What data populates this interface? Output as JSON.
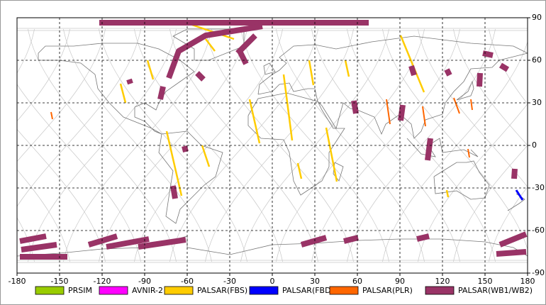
{
  "map": {
    "xlim": [
      -180,
      180
    ],
    "ylim": [
      -90,
      90
    ],
    "xticks": [
      -180,
      -150,
      -120,
      -90,
      -60,
      -30,
      0,
      30,
      60,
      90,
      120,
      150,
      180
    ],
    "yticks": [
      -90,
      -60,
      -30,
      0,
      30,
      60,
      90
    ],
    "grid": true
  },
  "legend": [
    {
      "name": "PRSIM",
      "color": "#99cc00"
    },
    {
      "name": "AVNIR-2",
      "color": "#ff00ff"
    },
    {
      "name": "PALSAR(FBS)",
      "color": "#ffcc00",
      "swaths": [
        [
          [
            -107,
            43.5
          ],
          [
            -103.5,
            30
          ]
        ],
        [
          [
            -88,
            60
          ],
          [
            -84,
            46.5
          ]
        ],
        [
          [
            -74.5,
            10
          ],
          [
            -64,
            -35.5
          ]
        ],
        [
          [
            -49.5,
            0
          ],
          [
            -44.5,
            -15
          ]
        ],
        [
          [
            -16,
            32.5
          ],
          [
            -9,
            1.5
          ]
        ],
        [
          [
            8,
            50
          ],
          [
            14,
            3.5
          ]
        ],
        [
          [
            26,
            60
          ],
          [
            29,
            42.5
          ]
        ],
        [
          [
            51.5,
            60
          ],
          [
            54,
            48.5
          ]
        ],
        [
          [
            38,
            12.5
          ],
          [
            45.5,
            -25.5
          ]
        ],
        [
          [
            90.5,
            77.5
          ],
          [
            107,
            37.5
          ]
        ],
        [
          [
            18,
            -12.5
          ],
          [
            20.5,
            -23.5
          ]
        ],
        [
          [
            -47,
            75
          ],
          [
            -40.5,
            66.5
          ]
        ],
        [
          [
            123,
            -31.5
          ],
          [
            124,
            -36.5
          ]
        ],
        [
          [
            -61,
            86.5
          ],
          [
            -27,
            75
          ]
        ]
      ]
    },
    {
      "name": "PALSAR(FBD)",
      "color": "#0000ff",
      "swaths": [
        [
          [
            172,
            -31.5
          ],
          [
            176.5,
            -38.5
          ]
        ]
      ]
    },
    {
      "name": "PALSAR(PLR)",
      "color": "#ff6600",
      "swaths": [
        [
          [
            -156,
            23.5
          ],
          [
            -155,
            18.5
          ]
        ],
        [
          [
            80.5,
            32.5
          ],
          [
            83,
            15
          ]
        ],
        [
          [
            106,
            27.5
          ],
          [
            108,
            13.5
          ]
        ],
        [
          [
            128,
            33.5
          ],
          [
            132,
            22.5
          ]
        ],
        [
          [
            138,
            -2.5
          ],
          [
            139,
            -8.5
          ]
        ],
        [
          [
            140,
            32.5
          ],
          [
            141,
            25
          ]
        ]
      ]
    },
    {
      "name": "PALSAR(WB1/WB2)",
      "color": "#993366",
      "swaths": [
        [
          [
            -122,
            86.5
          ],
          [
            68,
            86.5
          ]
        ],
        [
          [
            -73,
            47.5
          ],
          [
            -66,
            66.5
          ],
          [
            -47,
            77.5
          ],
          [
            -7,
            84
          ]
        ],
        [
          [
            -24.5,
            65
          ],
          [
            -12,
            77.5
          ]
        ],
        [
          [
            -53,
            51
          ],
          [
            -48.5,
            46.5
          ]
        ],
        [
          [
            -77,
            41.5
          ],
          [
            -79,
            32.5
          ]
        ],
        [
          [
            -101,
            46.5
          ],
          [
            -100,
            43.5
          ]
        ],
        [
          [
            -23.5,
            67.5
          ],
          [
            -18.5,
            57.5
          ]
        ],
        [
          [
            -62,
            -0.5
          ],
          [
            -61,
            -4.5
          ]
        ],
        [
          [
            -70,
            -28.5
          ],
          [
            -68.5,
            -37.5
          ]
        ],
        [
          [
            57.5,
            31.5
          ],
          [
            59,
            22.5
          ]
        ],
        [
          [
            98,
            56
          ],
          [
            100,
            49.5
          ]
        ],
        [
          [
            92,
            28.5
          ],
          [
            90.5,
            17.5
          ]
        ],
        [
          [
            111.5,
            5
          ],
          [
            109.5,
            -10.5
          ]
        ],
        [
          [
            123,
            53.5
          ],
          [
            125,
            49.5
          ]
        ],
        [
          [
            148.5,
            65
          ],
          [
            155.5,
            63.5
          ]
        ],
        [
          [
            146.5,
            51
          ],
          [
            146,
            41.5
          ]
        ],
        [
          [
            161,
            56.5
          ],
          [
            166,
            53.5
          ]
        ],
        [
          [
            171,
            -16.5
          ],
          [
            170.5,
            -23.5
          ]
        ],
        [
          [
            -178,
            -67.5
          ],
          [
            -159.5,
            -64
          ]
        ],
        [
          [
            -177,
            -73.5
          ],
          [
            -152,
            -70
          ]
        ],
        [
          [
            -178,
            -78.5
          ],
          [
            -144.5,
            -78.5
          ]
        ],
        [
          [
            -129.5,
            -70
          ],
          [
            -109.5,
            -64
          ]
        ],
        [
          [
            -117,
            -71.5
          ],
          [
            -87,
            -66
          ]
        ],
        [
          [
            -94.5,
            -71.5
          ],
          [
            -61,
            -66.5
          ]
        ],
        [
          [
            20.5,
            -70
          ],
          [
            38,
            -65
          ]
        ],
        [
          [
            50.5,
            -67.5
          ],
          [
            60.5,
            -65
          ]
        ],
        [
          [
            102,
            -66
          ],
          [
            110.5,
            -64
          ]
        ],
        [
          [
            160.5,
            -70
          ],
          [
            179,
            -62.5
          ]
        ],
        [
          [
            158,
            -76.5
          ],
          [
            179,
            -75
          ]
        ]
      ]
    }
  ]
}
